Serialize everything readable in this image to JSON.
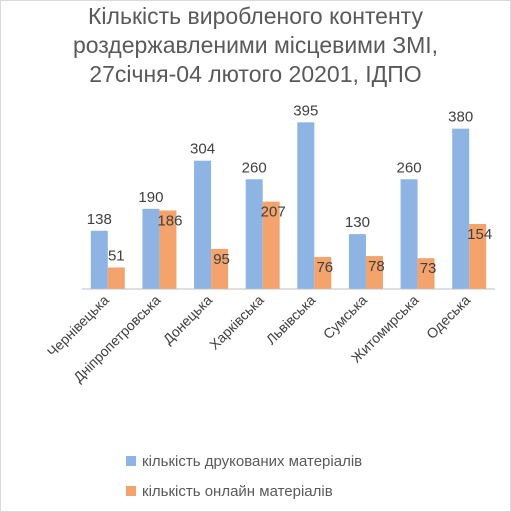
{
  "chart_data": {
    "type": "bar",
    "title_lines": [
      "Кількість виробленого контенту",
      "роздержавленими місцевими ЗМІ,",
      "27січня-04 лютого 20201, ІДПО"
    ],
    "categories": [
      "Чернівецька",
      "Дніпропетровська",
      "Донецька",
      "Харківська",
      "Львівська",
      "Сумська",
      "Житомирська",
      "Одеська"
    ],
    "series": [
      {
        "name": "кількість друкованих матеріалів",
        "color": "#8db4e2",
        "values": [
          138,
          190,
          304,
          260,
          395,
          130,
          260,
          380
        ]
      },
      {
        "name": "кількість онлайн матеріалів",
        "color": "#f4a36c",
        "values": [
          51,
          186,
          95,
          207,
          76,
          78,
          73,
          154
        ]
      }
    ],
    "ylim": [
      0,
      410
    ],
    "grid": false,
    "legend_position": "bottom"
  }
}
